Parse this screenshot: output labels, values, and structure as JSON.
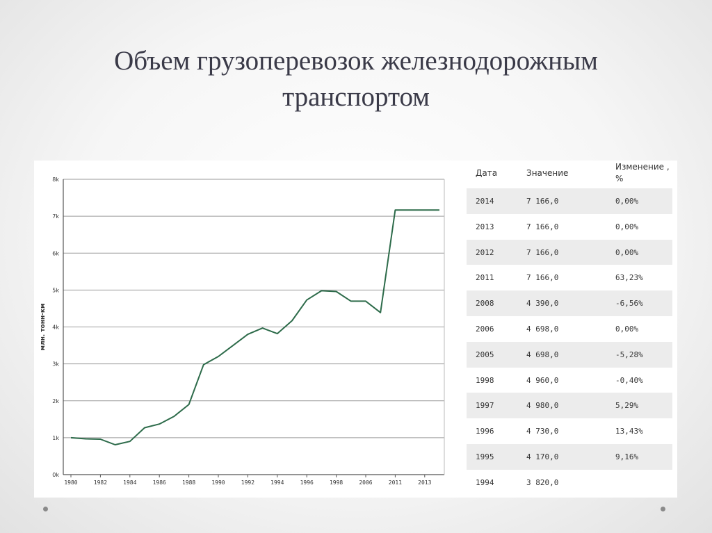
{
  "title": {
    "line1": "Объем грузоперевозок железнодорожным",
    "line2": "транспортом"
  },
  "chart_data": {
    "type": "line",
    "ylabel": "млн. тонн-км",
    "ylim": [
      0,
      8000
    ],
    "yticks": [
      "0k",
      "1k",
      "2k",
      "3k",
      "4k",
      "5k",
      "6k",
      "7k",
      "8k"
    ],
    "xticks": [
      "1980",
      "1982",
      "1984",
      "1986",
      "1988",
      "1990",
      "1992",
      "1994",
      "1996",
      "1998",
      "2006",
      "2011",
      "2013"
    ],
    "grid": true,
    "line_color": "#2d6b4a",
    "x": [
      "1980",
      "1981",
      "1982",
      "1983",
      "1984",
      "1985",
      "1986",
      "1987",
      "1988",
      "1989",
      "1990",
      "1991",
      "1992",
      "1993",
      "1994",
      "1995",
      "1996",
      "1997",
      "1998",
      "2005",
      "2006",
      "2008",
      "2011",
      "2012",
      "2013",
      "2014"
    ],
    "values": [
      1000,
      970,
      960,
      810,
      900,
      1270,
      1370,
      1580,
      1900,
      2980,
      3200,
      3500,
      3800,
      3970,
      3820,
      4170,
      4730,
      4980,
      4960,
      4698,
      4698,
      4390,
      7166,
      7166,
      7166,
      7166
    ]
  },
  "table": {
    "headers": {
      "date": "Дата",
      "value": "Значение",
      "change_line1": "Изменение ,",
      "change_line2": "%"
    },
    "rows": [
      {
        "date": "2014",
        "value": "7 166,0",
        "change": "0,00%"
      },
      {
        "date": "2013",
        "value": "7 166,0",
        "change": "0,00%"
      },
      {
        "date": "2012",
        "value": "7 166,0",
        "change": "0,00%"
      },
      {
        "date": "2011",
        "value": "7 166,0",
        "change": "63,23%"
      },
      {
        "date": "2008",
        "value": "4 390,0",
        "change": "-6,56%"
      },
      {
        "date": "2006",
        "value": "4 698,0",
        "change": "0,00%"
      },
      {
        "date": "2005",
        "value": "4 698,0",
        "change": "-5,28%"
      },
      {
        "date": "1998",
        "value": "4 960,0",
        "change": "-0,40%"
      },
      {
        "date": "1997",
        "value": "4 980,0",
        "change": "5,29%"
      },
      {
        "date": "1996",
        "value": "4 730,0",
        "change": "13,43%"
      },
      {
        "date": "1995",
        "value": "4 170,0",
        "change": "9,16%"
      },
      {
        "date": "1994",
        "value": "3 820,0",
        "change": ""
      }
    ]
  }
}
